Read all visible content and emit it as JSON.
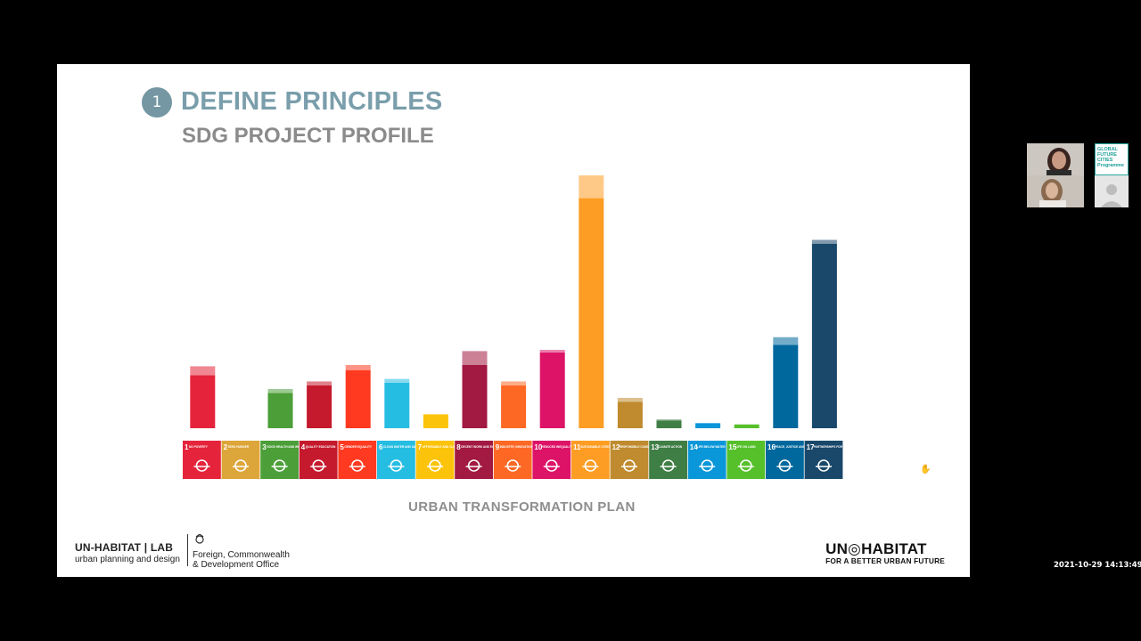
{
  "slide": {
    "step_number": "1",
    "title": "DEFINE PRINCIPLES",
    "subtitle": "SDG PROJECT PROFILE",
    "caption": "URBAN TRANSFORMATION PLAN",
    "logos": {
      "unhabitat_lab_line1": "UN-HABITAT | LAB",
      "unhabitat_lab_line2": "urban planning and design",
      "fcdo_line1": "Foreign, Commonwealth",
      "fcdo_line2": "& Development Office",
      "unhabitat_line1": "UN◎HABITAT",
      "unhabitat_line2": "FOR A BETTER URBAN FUTURE"
    }
  },
  "chart_data": {
    "type": "bar",
    "title": "",
    "xlabel": "",
    "ylabel": "",
    "stacked": true,
    "ylim": [
      0,
      100
    ],
    "categories": [
      "1",
      "2",
      "3",
      "4",
      "5",
      "6",
      "7",
      "8",
      "9",
      "10",
      "11",
      "12",
      "13",
      "14",
      "15",
      "16",
      "17"
    ],
    "category_labels": [
      "NO POVERTY",
      "ZERO HUNGER",
      "GOOD HEALTH AND WELL-BEING",
      "QUALITY EDUCATION",
      "GENDER EQUALITY",
      "CLEAN WATER AND SANITATION",
      "AFFORDABLE AND CLEAN ENERGY",
      "DECENT WORK AND ECONOMIC GROWTH",
      "INDUSTRY, INNOVATION AND INFRASTRUCTURE",
      "REDUCED INEQUALITIES",
      "SUSTAINABLE CITIES AND COMMUNITIES",
      "RESPONSIBLE CONSUMPTION AND PRODUCTION",
      "CLIMATE ACTION",
      "LIFE BELOW WATER",
      "LIFE ON LAND",
      "PEACE, JUSTICE AND STRONG INSTITUTIONS",
      "PARTNERSHIPS FOR THE GOALS"
    ],
    "colors": [
      "#e5243b",
      "#dda63a",
      "#4c9f38",
      "#c5192d",
      "#ff3a21",
      "#26bde2",
      "#fcc30b",
      "#a21942",
      "#fd6925",
      "#dd1367",
      "#fd9d24",
      "#bf8b2e",
      "#3f7e44",
      "#0a97d9",
      "#56c02b",
      "#00689d",
      "#19486a"
    ],
    "series": [
      {
        "values": [
          21,
          0,
          14,
          17,
          23,
          18,
          5.5,
          25,
          17,
          30,
          91,
          10.5,
          3,
          2,
          1.5,
          33,
          73
        ]
      },
      {
        "values": [
          3.5,
          0,
          1.5,
          1.5,
          2,
          1.5,
          0,
          5.5,
          1.5,
          1,
          9,
          1.5,
          0.5,
          0,
          0,
          3,
          1.5
        ]
      }
    ],
    "icons": [
      "family-icon",
      "bowl-icon",
      "heartbeat-icon",
      "book-icon",
      "gender-icon",
      "water-drop-icon",
      "sun-icon",
      "growth-chart-icon",
      "cubes-icon",
      "equality-arrows-icon",
      "city-icon",
      "infinity-icon",
      "eye-globe-icon",
      "fish-icon",
      "tree-icon",
      "dove-icon",
      "flower-ring-icon"
    ]
  },
  "participants": {
    "tile_text": "GLOBAL FUTURE CITIES Programme",
    "avatar_icons": [
      "person-video-icon",
      "person-video-icon",
      "gfcp-logo-icon",
      "user-placeholder-icon"
    ]
  },
  "timestamp": "2021-10-29  14:13:49"
}
